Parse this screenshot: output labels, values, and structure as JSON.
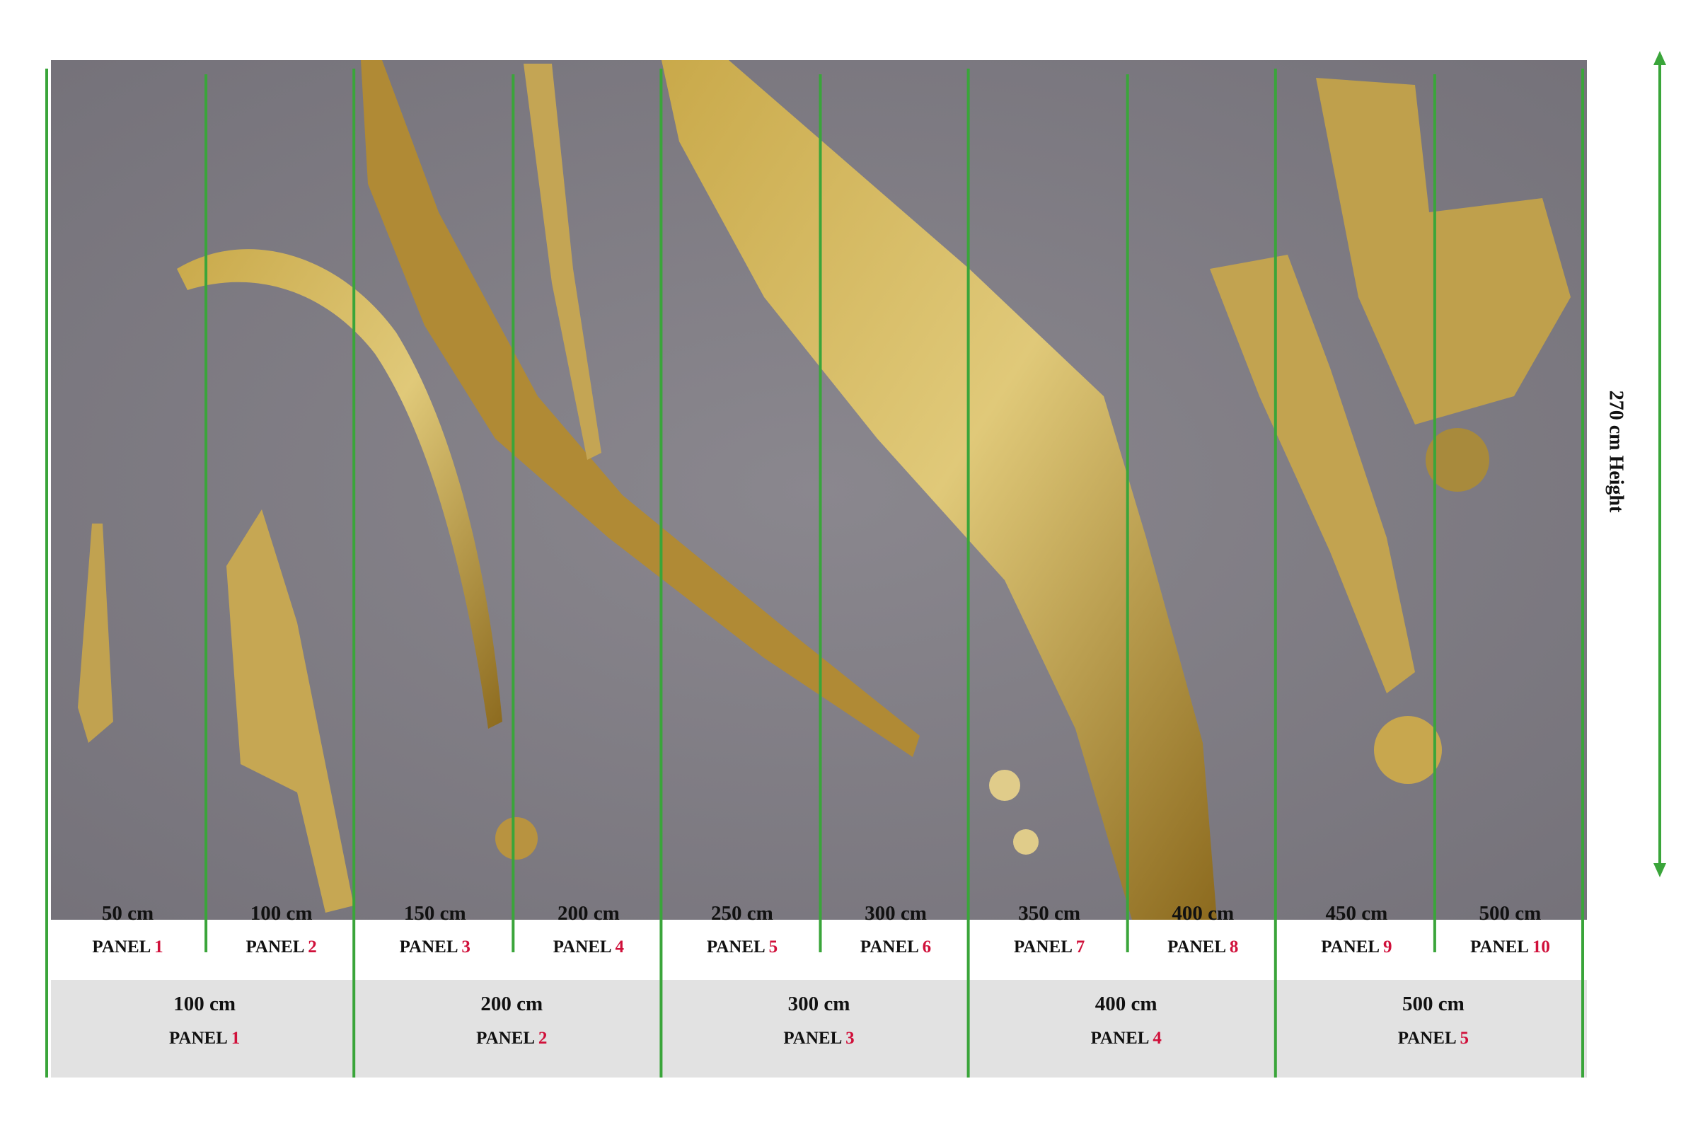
{
  "height_label": "270 cm Height",
  "narrow_panels": [
    {
      "width": "50 cm",
      "label": "PANEL",
      "number": "1"
    },
    {
      "width": "100 cm",
      "label": "PANEL",
      "number": "2"
    },
    {
      "width": "150 cm",
      "label": "PANEL",
      "number": "3"
    },
    {
      "width": "200 cm",
      "label": "PANEL",
      "number": "4"
    },
    {
      "width": "250 cm",
      "label": "PANEL",
      "number": "5"
    },
    {
      "width": "300 cm",
      "label": "PANEL",
      "number": "6"
    },
    {
      "width": "350 cm",
      "label": "PANEL",
      "number": "7"
    },
    {
      "width": "400 cm",
      "label": "PANEL",
      "number": "8"
    },
    {
      "width": "450 cm",
      "label": "PANEL",
      "number": "9"
    },
    {
      "width": "500 cm",
      "label": "PANEL",
      "number": "10"
    }
  ],
  "wide_panels": [
    {
      "width": "100 cm",
      "label": "PANEL",
      "number": "1"
    },
    {
      "width": "200 cm",
      "label": "PANEL",
      "number": "2"
    },
    {
      "width": "300 cm",
      "label": "PANEL",
      "number": "3"
    },
    {
      "width": "400 cm",
      "label": "PANEL",
      "number": "4"
    },
    {
      "width": "500 cm",
      "label": "PANEL",
      "number": "5"
    }
  ]
}
